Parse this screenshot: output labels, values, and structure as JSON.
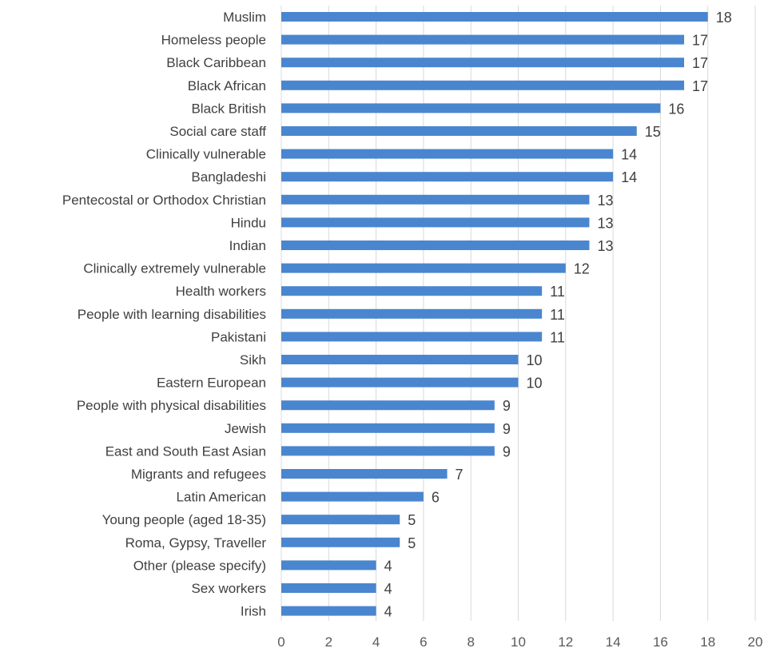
{
  "chart_data": {
    "type": "bar",
    "orientation": "horizontal",
    "categories": [
      "Muslim",
      "Homeless people",
      "Black Caribbean",
      "Black African",
      "Black British",
      "Social care staff",
      "Clinically vulnerable",
      "Bangladeshi",
      "Pentecostal or Orthodox Christian",
      "Hindu",
      "Indian",
      "Clinically extremely vulnerable",
      "Health workers",
      "People with learning disabilities",
      "Pakistani",
      "Sikh",
      "Eastern European",
      "People with physical disabilities",
      "Jewish",
      "East and South East Asian",
      "Migrants and refugees",
      "Latin American",
      "Young people (aged 18-35)",
      "Roma, Gypsy, Traveller",
      "Other (please specify)",
      "Sex workers",
      "Irish"
    ],
    "values": [
      18,
      17,
      17,
      17,
      16,
      15,
      14,
      14,
      13,
      13,
      13,
      12,
      11,
      11,
      11,
      10,
      10,
      9,
      9,
      9,
      7,
      6,
      5,
      5,
      4,
      4,
      4
    ],
    "xlim": [
      0,
      20
    ],
    "xticks": [
      0,
      2,
      4,
      6,
      8,
      10,
      12,
      14,
      16,
      18,
      20
    ],
    "grid": "vertical",
    "legend": "none",
    "bar_color": "#4a86cf",
    "title": "",
    "xlabel": "",
    "ylabel": ""
  }
}
